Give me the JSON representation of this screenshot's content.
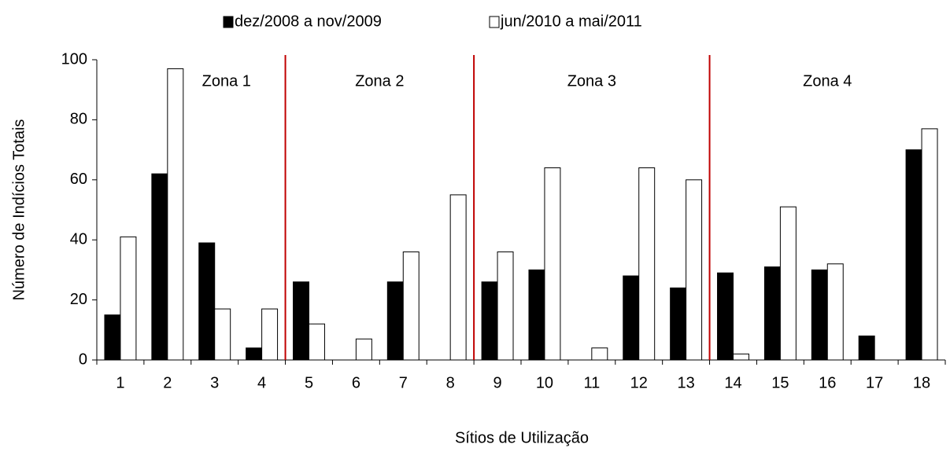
{
  "chart_data": {
    "type": "bar",
    "x_label": "Sítios de Utilização",
    "y_label": "Número de Indícios Totais",
    "categories": [
      "1",
      "2",
      "3",
      "4",
      "5",
      "6",
      "7",
      "8",
      "9",
      "10",
      "11",
      "12",
      "13",
      "14",
      "15",
      "16",
      "17",
      "18"
    ],
    "series": [
      {
        "name": "dez/2008 a nov/2009",
        "color": "#000000",
        "values": [
          15,
          62,
          39,
          4,
          26,
          0,
          26,
          0,
          26,
          30,
          0,
          28,
          24,
          29,
          31,
          30,
          8,
          70
        ]
      },
      {
        "name": "jun/2010 a mai/2011",
        "color": "#ffffff",
        "values": [
          41,
          97,
          17,
          17,
          12,
          7,
          36,
          55,
          36,
          64,
          4,
          64,
          60,
          2,
          51,
          32,
          0,
          77
        ]
      }
    ],
    "zones": [
      {
        "label": "Zona 1",
        "from": "1",
        "to": "4"
      },
      {
        "label": "Zona 2",
        "from": "5",
        "to": "8"
      },
      {
        "label": "Zona 3",
        "from": "9",
        "to": "13"
      },
      {
        "label": "Zona 4",
        "from": "14",
        "to": "18"
      }
    ],
    "zone_color": "#c00000",
    "ylim": [
      0,
      100
    ],
    "yticks": [
      0,
      20,
      40,
      60,
      80,
      100
    ],
    "grid": false,
    "legend": "top"
  }
}
